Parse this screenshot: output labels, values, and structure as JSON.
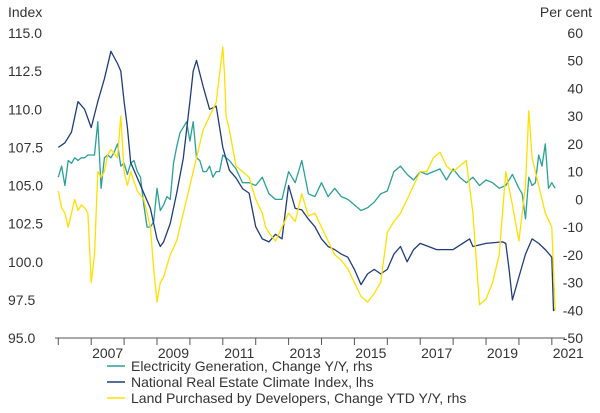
{
  "chart_data": {
    "type": "line",
    "left_axis": {
      "label": "Index",
      "ylim": [
        95.0,
        115.0
      ],
      "ticks": [
        "95.0",
        "97.5",
        "100.0",
        "102.5",
        "105.0",
        "107.5",
        "110.0",
        "112.5",
        "115.0"
      ]
    },
    "right_axis": {
      "label": "Per cent",
      "ylim": [
        -50,
        60
      ],
      "ticks": [
        "-50",
        "-40",
        "-30",
        "-20",
        "-10",
        "0",
        "10",
        "20",
        "30",
        "40",
        "50",
        "60"
      ]
    },
    "x_axis": {
      "xlim": [
        2005.9,
        2021.4
      ],
      "tick_labels": [
        "2007",
        "2009",
        "2011",
        "2013",
        "2015",
        "2017",
        "2019",
        "2021"
      ]
    },
    "grid": false,
    "legend_position": "bottom",
    "series": [
      {
        "name": "Electricity Generation, Change Y/Y, rhs",
        "axis": "right",
        "color": "#2aa198",
        "x": [
          2006.0,
          2006.1,
          2006.2,
          2006.3,
          2006.4,
          2006.5,
          2006.6,
          2006.7,
          2006.8,
          2006.9,
          2007.0,
          2007.1,
          2007.2,
          2007.3,
          2007.4,
          2007.5,
          2007.6,
          2007.7,
          2007.8,
          2007.9,
          2008.0,
          2008.1,
          2008.2,
          2008.3,
          2008.4,
          2008.5,
          2008.6,
          2008.7,
          2008.8,
          2008.9,
          2009.0,
          2009.1,
          2009.2,
          2009.3,
          2009.4,
          2009.5,
          2009.6,
          2009.7,
          2009.8,
          2009.9,
          2010.0,
          2010.1,
          2010.2,
          2010.3,
          2010.4,
          2010.5,
          2010.6,
          2010.7,
          2010.8,
          2010.9,
          2011.0,
          2011.2,
          2011.4,
          2011.6,
          2011.8,
          2012.0,
          2012.2,
          2012.4,
          2012.6,
          2012.8,
          2013.0,
          2013.2,
          2013.4,
          2013.6,
          2013.8,
          2014.0,
          2014.2,
          2014.4,
          2014.6,
          2014.8,
          2015.0,
          2015.2,
          2015.4,
          2015.6,
          2015.8,
          2016.0,
          2016.2,
          2016.4,
          2016.6,
          2016.8,
          2017.0,
          2017.2,
          2017.4,
          2017.6,
          2017.8,
          2018.0,
          2018.2,
          2018.4,
          2018.6,
          2018.8,
          2019.0,
          2019.2,
          2019.4,
          2019.6,
          2019.8,
          2020.0,
          2020.1,
          2020.2,
          2020.3,
          2020.4,
          2020.5,
          2020.6,
          2020.7,
          2020.8,
          2020.9,
          2021.0,
          2021.1
        ],
        "values": [
          8,
          12,
          5,
          14,
          13,
          15,
          14,
          15,
          15,
          16,
          16,
          16,
          28,
          4,
          15,
          16,
          15,
          17,
          20,
          12,
          13,
          9,
          13,
          14,
          10,
          8,
          -2,
          -10,
          -10,
          -8,
          4,
          -4,
          -2,
          1,
          0,
          13,
          19,
          24,
          26,
          28,
          21,
          28,
          15,
          14,
          10,
          10,
          12,
          8,
          10,
          10,
          16,
          14,
          11,
          6,
          6,
          5,
          8,
          2,
          0,
          0,
          10,
          6,
          14,
          2,
          1,
          6,
          1,
          4,
          1,
          0,
          -2,
          -4,
          -3,
          -1,
          2,
          3,
          10,
          12,
          9,
          7,
          10,
          9,
          10,
          11,
          7,
          11,
          8,
          6,
          8,
          5,
          7,
          6,
          4,
          5,
          9,
          4,
          2,
          -7,
          8,
          5,
          6,
          16,
          12,
          20,
          4,
          6,
          4
        ]
      },
      {
        "name": "National Real Estate Climate Index, lhs",
        "axis": "left",
        "color": "#1f3d7a",
        "x": [
          2006.0,
          2006.2,
          2006.4,
          2006.6,
          2006.8,
          2007.0,
          2007.2,
          2007.4,
          2007.6,
          2007.8,
          2007.9,
          2008.0,
          2008.1,
          2008.2,
          2008.4,
          2008.6,
          2008.8,
          2009.0,
          2009.1,
          2009.2,
          2009.4,
          2009.6,
          2009.8,
          2010.0,
          2010.1,
          2010.2,
          2010.4,
          2010.6,
          2010.8,
          2011.0,
          2011.2,
          2011.4,
          2011.6,
          2011.8,
          2012.0,
          2012.2,
          2012.4,
          2012.6,
          2012.8,
          2013.0,
          2013.2,
          2013.4,
          2013.6,
          2013.8,
          2014.0,
          2014.2,
          2014.4,
          2014.6,
          2014.8,
          2015.0,
          2015.2,
          2015.4,
          2015.6,
          2015.8,
          2016.0,
          2016.2,
          2016.4,
          2016.6,
          2016.8,
          2017.0,
          2017.5,
          2018.0,
          2018.5,
          2018.6,
          2019.0,
          2019.5,
          2019.6,
          2019.7,
          2019.8,
          2020.0,
          2020.2,
          2020.4,
          2020.6,
          2020.8,
          2021.0,
          2021.05,
          2021.1
        ],
        "values": [
          107.5,
          107.8,
          108.5,
          110.5,
          110.0,
          108.8,
          110.5,
          112.0,
          113.8,
          113.0,
          112.5,
          110.5,
          108.8,
          106.5,
          105.5,
          104.5,
          103.5,
          101.5,
          101.0,
          101.3,
          102.5,
          104.5,
          106.8,
          110.5,
          112.5,
          113.2,
          111.5,
          110.0,
          110.2,
          107.5,
          106.0,
          105.5,
          104.8,
          104.5,
          102.3,
          101.5,
          101.3,
          101.8,
          101.5,
          105.0,
          103.5,
          103.4,
          102.8,
          102.3,
          101.5,
          101.0,
          100.8,
          100.5,
          100.3,
          99.5,
          98.5,
          99.2,
          99.5,
          99.2,
          99.5,
          100.5,
          101.0,
          100.0,
          100.8,
          101.2,
          100.8,
          100.8,
          101.5,
          101.0,
          101.2,
          101.3,
          101.2,
          99.5,
          97.5,
          99.0,
          100.5,
          101.5,
          101.2,
          100.8,
          100.3,
          96.8,
          96.9
        ]
      },
      {
        "name": "Land Purchased by Developers, Change YTD Y/Y, rhs",
        "axis": "right",
        "color": "#ffe000",
        "x": [
          2006.0,
          2006.1,
          2006.2,
          2006.3,
          2006.4,
          2006.5,
          2006.6,
          2006.7,
          2006.8,
          2006.9,
          2007.0,
          2007.1,
          2007.2,
          2007.3,
          2007.4,
          2007.5,
          2007.6,
          2007.8,
          2007.9,
          2008.0,
          2008.1,
          2008.2,
          2008.4,
          2008.6,
          2008.8,
          2008.9,
          2009.0,
          2009.1,
          2009.2,
          2009.4,
          2009.6,
          2009.8,
          2010.0,
          2010.2,
          2010.4,
          2010.6,
          2010.8,
          2011.0,
          2011.05,
          2011.1,
          2011.2,
          2011.4,
          2011.6,
          2011.8,
          2012.0,
          2012.2,
          2012.3,
          2012.4,
          2012.6,
          2012.8,
          2013.0,
          2013.2,
          2013.4,
          2013.6,
          2013.8,
          2014.0,
          2014.2,
          2014.4,
          2014.6,
          2014.8,
          2015.0,
          2015.2,
          2015.4,
          2015.6,
          2015.8,
          2016.0,
          2016.2,
          2016.4,
          2016.6,
          2016.8,
          2017.0,
          2017.2,
          2017.4,
          2017.6,
          2017.8,
          2018.0,
          2018.2,
          2018.4,
          2018.6,
          2018.8,
          2019.0,
          2019.2,
          2019.4,
          2019.6,
          2019.8,
          2020.0,
          2020.1,
          2020.2,
          2020.3,
          2020.4,
          2020.6,
          2020.8,
          2021.0,
          2021.1
        ],
        "values": [
          3,
          -3,
          -5,
          -10,
          -5,
          0,
          -4,
          -2,
          -3,
          -5,
          -30,
          -20,
          10,
          8,
          10,
          16,
          18,
          15,
          30,
          10,
          5,
          10,
          3,
          0,
          -10,
          -25,
          -37,
          -30,
          -28,
          -20,
          -15,
          -5,
          5,
          15,
          25,
          30,
          35,
          55,
          45,
          30,
          25,
          12,
          10,
          8,
          0,
          -5,
          -10,
          -12,
          -15,
          -10,
          -5,
          -8,
          2,
          -6,
          -5,
          -10,
          -15,
          -20,
          -22,
          -25,
          -30,
          -35,
          -37,
          -34,
          -30,
          -12,
          -8,
          -5,
          0,
          5,
          10,
          10,
          15,
          17,
          12,
          10,
          12,
          14,
          -5,
          -38,
          -36,
          -30,
          -20,
          10,
          -2,
          -15,
          -5,
          5,
          32,
          15,
          5,
          -5,
          -10,
          -40
        ]
      }
    ]
  }
}
